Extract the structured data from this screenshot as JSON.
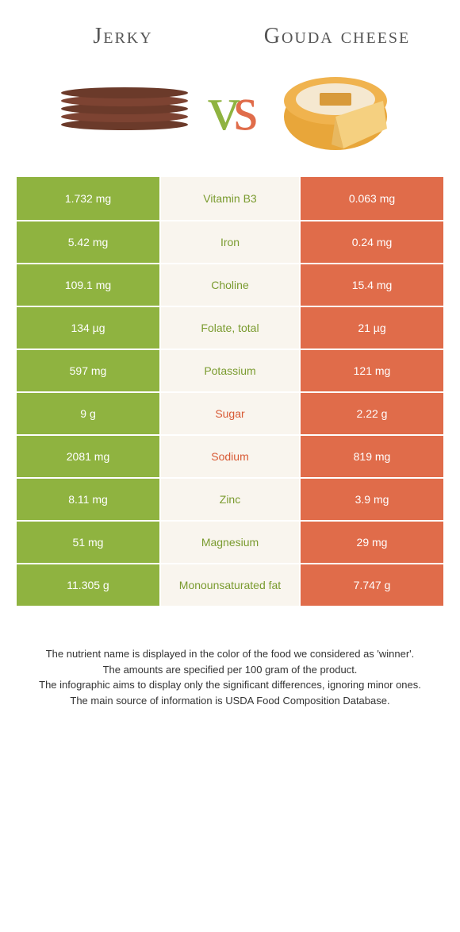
{
  "food_a": {
    "title": "Jerky",
    "color": "#8fb340"
  },
  "food_b": {
    "title": "Gouda cheese",
    "color": "#e06c4a"
  },
  "colors": {
    "left": "#8fb340",
    "right": "#e06c4a",
    "mid_bg": "#f9f5ee",
    "mid_green": "#7a9b2f",
    "mid_orange": "#d85a35"
  },
  "rows": [
    {
      "left": "1.732 mg",
      "name": "Vitamin B3",
      "winner": "a",
      "right": "0.063 mg"
    },
    {
      "left": "5.42 mg",
      "name": "Iron",
      "winner": "a",
      "right": "0.24 mg"
    },
    {
      "left": "109.1 mg",
      "name": "Choline",
      "winner": "a",
      "right": "15.4 mg"
    },
    {
      "left": "134 µg",
      "name": "Folate, total",
      "winner": "a",
      "right": "21 µg"
    },
    {
      "left": "597 mg",
      "name": "Potassium",
      "winner": "a",
      "right": "121 mg"
    },
    {
      "left": "9 g",
      "name": "Sugar",
      "winner": "b",
      "right": "2.22 g"
    },
    {
      "left": "2081 mg",
      "name": "Sodium",
      "winner": "b",
      "right": "819 mg"
    },
    {
      "left": "8.11 mg",
      "name": "Zinc",
      "winner": "a",
      "right": "3.9 mg"
    },
    {
      "left": "51 mg",
      "name": "Magnesium",
      "winner": "a",
      "right": "29 mg"
    },
    {
      "left": "11.305 g",
      "name": "Monounsaturated fat",
      "winner": "a",
      "right": "7.747 g"
    }
  ],
  "footer": {
    "l1": "The nutrient name is displayed in the color of the food we considered as 'winner'.",
    "l2": "The amounts are specified per 100 gram of the product.",
    "l3": "The infographic aims to display only the significant differences, ignoring minor ones.",
    "l4": "The main source of information is USDA Food Composition Database."
  }
}
